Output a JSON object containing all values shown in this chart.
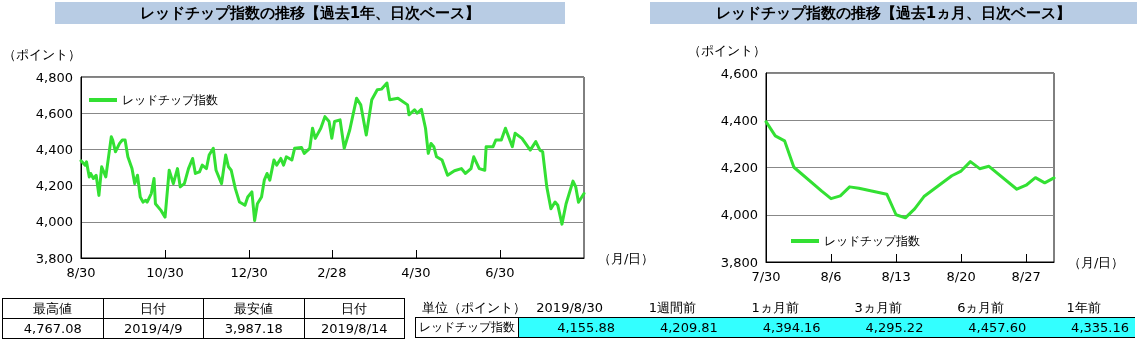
{
  "chart_data": [
    {
      "type": "line",
      "title": "レッドチップ指数の推移【過去1年、日次ベース】",
      "xlabel": "（月/日）",
      "ylabel": "（ポイント）",
      "legend": "top left",
      "grid": "y",
      "marker": "none",
      "line_style": "solid",
      "xlim": [
        "2018-08-30",
        "2019-08-30"
      ],
      "xticks": [
        {
          "value": "2018-08-30",
          "label": "8/30"
        },
        {
          "value": "2018-10-30",
          "label": "10/30"
        },
        {
          "value": "2018-12-30",
          "label": "12/30"
        },
        {
          "value": "2019-02-28",
          "label": "2/28"
        },
        {
          "value": "2019-04-30",
          "label": "4/30"
        },
        {
          "value": "2019-06-30",
          "label": "6/30"
        }
      ],
      "ylim": [
        3800,
        4800
      ],
      "yticks": [
        {
          "value": 3800,
          "label": "3,800"
        },
        {
          "value": 4000,
          "label": "4,000"
        },
        {
          "value": 4200,
          "label": "4,200"
        },
        {
          "value": 4400,
          "label": "4,400"
        },
        {
          "value": 4600,
          "label": "4,600"
        },
        {
          "value": 4800,
          "label": "4,800"
        }
      ],
      "x": [
        "2018-08-30",
        "2018-09-02",
        "2018-09-03",
        "2018-09-05",
        "2018-09-06",
        "2018-09-08",
        "2018-09-10",
        "2018-09-12",
        "2018-09-14",
        "2018-09-17",
        "2018-09-21",
        "2018-09-22",
        "2018-09-24",
        "2018-09-27",
        "2018-09-29",
        "2018-10-01",
        "2018-10-03",
        "2018-10-06",
        "2018-10-08",
        "2018-10-10",
        "2018-10-12",
        "2018-10-14",
        "2018-10-16",
        "2018-10-17",
        "2018-10-20",
        "2018-10-22",
        "2018-10-23",
        "2018-10-27",
        "2018-10-30",
        "2018-11-02",
        "2018-11-05",
        "2018-11-08",
        "2018-11-10",
        "2018-11-13",
        "2018-11-16",
        "2018-11-19",
        "2018-11-21",
        "2018-11-24",
        "2018-11-26",
        "2018-11-29",
        "2018-12-01",
        "2018-12-04",
        "2018-12-06",
        "2018-12-10",
        "2018-12-13",
        "2018-12-15",
        "2018-12-17",
        "2018-12-20",
        "2018-12-23",
        "2018-12-27",
        "2018-12-29",
        "2019-01-01",
        "2019-01-03",
        "2019-01-05",
        "2019-01-08",
        "2019-01-10",
        "2019-01-12",
        "2019-01-14",
        "2019-01-17",
        "2019-01-19",
        "2019-01-22",
        "2019-01-24",
        "2019-01-26",
        "2019-01-30",
        "2019-02-01",
        "2019-02-06",
        "2019-02-08",
        "2019-02-12",
        "2019-02-14",
        "2019-02-16",
        "2019-02-20",
        "2019-02-23",
        "2019-02-26",
        "2019-02-28",
        "2019-03-02",
        "2019-03-06",
        "2019-03-09",
        "2019-03-13",
        "2019-03-18",
        "2019-03-21",
        "2019-03-25",
        "2019-03-29",
        "2019-04-02",
        "2019-04-05",
        "2019-04-09",
        "2019-04-11",
        "2019-04-17",
        "2019-04-24",
        "2019-04-25",
        "2019-04-29",
        "2019-05-01",
        "2019-05-04",
        "2019-05-07",
        "2019-05-09",
        "2019-05-11",
        "2019-05-13",
        "2019-05-15",
        "2019-05-19",
        "2019-05-23",
        "2019-05-28",
        "2019-06-02",
        "2019-06-05",
        "2019-06-09",
        "2019-06-11",
        "2019-06-15",
        "2019-06-19",
        "2019-06-20",
        "2019-06-25",
        "2019-06-27",
        "2019-07-01",
        "2019-07-04",
        "2019-07-09",
        "2019-07-11",
        "2019-07-16",
        "2019-07-22",
        "2019-07-26",
        "2019-07-29",
        "2019-07-31",
        "2019-08-03",
        "2019-08-06",
        "2019-08-09",
        "2019-08-11",
        "2019-08-14",
        "2019-08-17",
        "2019-08-22",
        "2019-08-24",
        "2019-08-26",
        "2019-08-30"
      ],
      "series": [
        {
          "name": "レッドチップ指数",
          "color": "#33e033",
          "values": [
            4337,
            4313,
            4331,
            4248,
            4267,
            4239,
            4257,
            4146,
            4304,
            4248,
            4470,
            4452,
            4387,
            4433,
            4452,
            4452,
            4359,
            4294,
            4211,
            4257,
            4137,
            4109,
            4119,
            4109,
            4156,
            4239,
            4100,
            4063,
            4026,
            4285,
            4211,
            4294,
            4193,
            4211,
            4294,
            4350,
            4267,
            4276,
            4313,
            4294,
            4369,
            4406,
            4285,
            4211,
            4369,
            4304,
            4285,
            4183,
            4109,
            4091,
            4137,
            4165,
            4007,
            4100,
            4137,
            4230,
            4267,
            4230,
            4341,
            4313,
            4350,
            4313,
            4359,
            4341,
            4406,
            4411,
            4378,
            4406,
            4517,
            4461,
            4517,
            4581,
            4554,
            4461,
            4554,
            4563,
            4406,
            4507,
            4683,
            4646,
            4480,
            4674,
            4730,
            4733,
            4767,
            4674,
            4683,
            4646,
            4591,
            4619,
            4600,
            4622,
            4517,
            4378,
            4433,
            4415,
            4359,
            4341,
            4257,
            4282,
            4294,
            4267,
            4294,
            4359,
            4294,
            4285,
            4415,
            4415,
            4452,
            4452,
            4517,
            4415,
            4489,
            4461,
            4396,
            4443,
            4396,
            4387,
            4193,
            4072,
            4109,
            4091,
            3987,
            4100,
            4225,
            4193,
            4108,
            4156
          ]
        }
      ]
    },
    {
      "type": "line",
      "title": "レッドチップ指数の推移【過去1ヵ月、日次ベース】",
      "xlabel": "（月/日）",
      "ylabel": "（ポイント）",
      "legend": "bottom left",
      "grid": "y",
      "marker": "none",
      "line_style": "solid",
      "xlim": [
        "2019-07-30",
        "2019-08-30"
      ],
      "xticks": [
        {
          "value": "2019-07-30",
          "label": "7/30"
        },
        {
          "value": "2019-08-06",
          "label": "8/6"
        },
        {
          "value": "2019-08-13",
          "label": "8/13"
        },
        {
          "value": "2019-08-20",
          "label": "8/20"
        },
        {
          "value": "2019-08-27",
          "label": "8/27"
        }
      ],
      "ylim": [
        3800,
        4600
      ],
      "yticks": [
        {
          "value": 3800,
          "label": "3,800"
        },
        {
          "value": 4000,
          "label": "4,000"
        },
        {
          "value": 4200,
          "label": "4,200"
        },
        {
          "value": 4400,
          "label": "4,400"
        },
        {
          "value": 4600,
          "label": "4,600"
        }
      ],
      "x": [
        "2019-07-30",
        "2019-07-31",
        "2019-08-01",
        "2019-08-02",
        "2019-08-05",
        "2019-08-06",
        "2019-08-07",
        "2019-08-08",
        "2019-08-09",
        "2019-08-12",
        "2019-08-13",
        "2019-08-14",
        "2019-08-15",
        "2019-08-16",
        "2019-08-19",
        "2019-08-20",
        "2019-08-21",
        "2019-08-22",
        "2019-08-23",
        "2019-08-26",
        "2019-08-27",
        "2019-08-28",
        "2019-08-29",
        "2019-08-30"
      ],
      "series": [
        {
          "name": "レッドチップ指数",
          "color": "#33e033",
          "values": [
            4394,
            4334,
            4313,
            4201,
            4100,
            4068,
            4080,
            4118,
            4112,
            4087,
            4000,
            3987,
            4025,
            4077,
            4165,
            4185,
            4225,
            4195,
            4205,
            4108,
            4125,
            4157,
            4135,
            4156
          ]
        }
      ]
    },
    {
      "type": "other",
      "categories": [
        "最高値",
        "日付",
        "最安値",
        "日付"
      ],
      "value_labels": [
        "4,767.08",
        "2019/4/9",
        "3,987.18",
        "2019/8/14"
      ]
    },
    {
      "type": "other",
      "categories": [
        "単位（ポイント）",
        "2019/8/30",
        "1週間前",
        "1ヵ月前",
        "3ヵ月前",
        "6ヵ月前",
        "1年前"
      ],
      "y_categories": [
        "レッドチップ指数"
      ],
      "color": "#33ffff",
      "value_labels": [
        "4,155.88",
        "4,209.81",
        "4,394.16",
        "4,295.22",
        "4,457.60",
        "4,335.16"
      ]
    }
  ]
}
